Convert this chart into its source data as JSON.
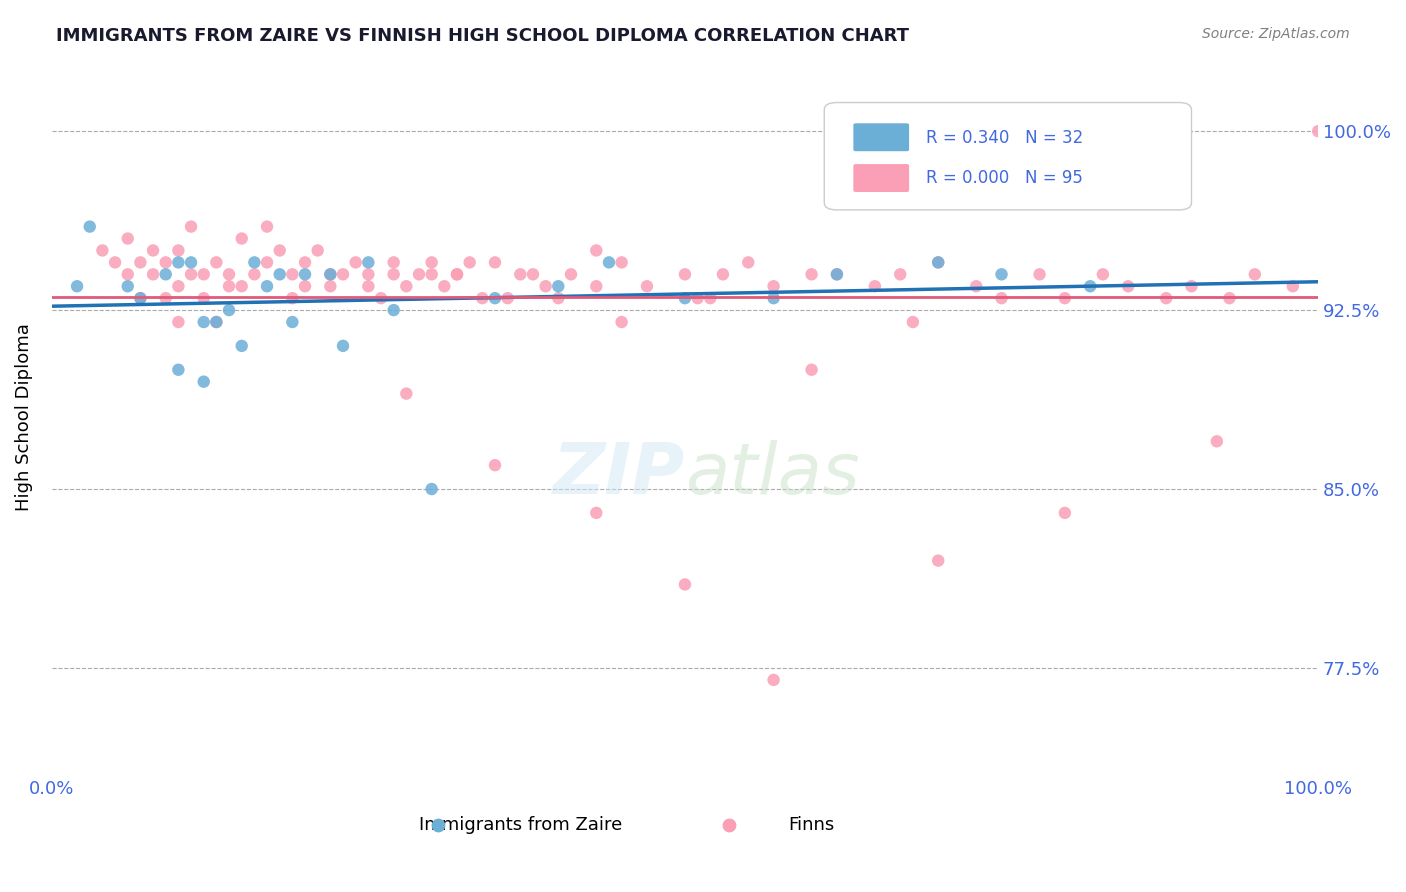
{
  "title": "IMMIGRANTS FROM ZAIRE VS FINNISH HIGH SCHOOL DIPLOMA CORRELATION CHART",
  "source": "Source: ZipAtlas.com",
  "xlabel_bottom": "",
  "ylabel": "High School Diploma",
  "x_tick_labels": [
    "0.0%",
    "100.0%"
  ],
  "y_tick_labels": [
    "77.5%",
    "85.0%",
    "92.5%",
    "100.0%"
  ],
  "y_tick_values": [
    0.775,
    0.85,
    0.925,
    1.0
  ],
  "x_lim": [
    0.0,
    1.0
  ],
  "y_lim": [
    0.73,
    1.03
  ],
  "legend_label1": "Immigrants from Zaire",
  "legend_label2": "Finns",
  "R1": "0.340",
  "N1": "32",
  "R2": "0.000",
  "N2": "95",
  "blue_color": "#6baed6",
  "pink_color": "#fa9fb5",
  "blue_line_color": "#2171b5",
  "pink_line_color": "#e05a7a",
  "title_color": "#1a1a2e",
  "axis_label_color": "#4169E1",
  "watermark": "ZIPatlas",
  "blue_dots_x": [
    0.02,
    0.03,
    0.06,
    0.07,
    0.09,
    0.1,
    0.1,
    0.11,
    0.12,
    0.12,
    0.13,
    0.14,
    0.15,
    0.16,
    0.17,
    0.18,
    0.19,
    0.2,
    0.22,
    0.23,
    0.25,
    0.27,
    0.3,
    0.35,
    0.4,
    0.44,
    0.5,
    0.57,
    0.62,
    0.7,
    0.75,
    0.82
  ],
  "blue_dots_y": [
    0.935,
    0.96,
    0.935,
    0.93,
    0.94,
    0.9,
    0.945,
    0.945,
    0.895,
    0.92,
    0.92,
    0.925,
    0.91,
    0.945,
    0.935,
    0.94,
    0.92,
    0.94,
    0.94,
    0.91,
    0.945,
    0.925,
    0.85,
    0.93,
    0.935,
    0.945,
    0.93,
    0.93,
    0.94,
    0.945,
    0.94,
    0.935
  ],
  "pink_dots_x": [
    0.04,
    0.05,
    0.06,
    0.06,
    0.07,
    0.07,
    0.08,
    0.08,
    0.09,
    0.09,
    0.1,
    0.1,
    0.1,
    0.11,
    0.11,
    0.12,
    0.12,
    0.13,
    0.13,
    0.14,
    0.14,
    0.15,
    0.15,
    0.16,
    0.17,
    0.18,
    0.19,
    0.19,
    0.2,
    0.2,
    0.21,
    0.22,
    0.23,
    0.24,
    0.25,
    0.26,
    0.27,
    0.28,
    0.29,
    0.3,
    0.31,
    0.32,
    0.33,
    0.34,
    0.35,
    0.36,
    0.38,
    0.39,
    0.4,
    0.41,
    0.43,
    0.45,
    0.47,
    0.5,
    0.51,
    0.53,
    0.55,
    0.57,
    0.6,
    0.62,
    0.65,
    0.67,
    0.7,
    0.73,
    0.75,
    0.78,
    0.8,
    0.83,
    0.85,
    0.88,
    0.9,
    0.93,
    0.95,
    0.98,
    1.0,
    0.28,
    0.35,
    0.43,
    0.5,
    0.57,
    0.7,
    0.8,
    0.92,
    0.45,
    0.6,
    0.68,
    0.43,
    0.52,
    0.37,
    0.22,
    0.3,
    0.25,
    0.32,
    0.27,
    0.17
  ],
  "pink_dots_y": [
    0.95,
    0.945,
    0.94,
    0.955,
    0.945,
    0.93,
    0.94,
    0.95,
    0.945,
    0.93,
    0.95,
    0.935,
    0.92,
    0.94,
    0.96,
    0.94,
    0.93,
    0.945,
    0.92,
    0.94,
    0.935,
    0.955,
    0.935,
    0.94,
    0.945,
    0.95,
    0.94,
    0.93,
    0.945,
    0.935,
    0.95,
    0.935,
    0.94,
    0.945,
    0.94,
    0.93,
    0.945,
    0.935,
    0.94,
    0.945,
    0.935,
    0.94,
    0.945,
    0.93,
    0.945,
    0.93,
    0.94,
    0.935,
    0.93,
    0.94,
    0.935,
    0.945,
    0.935,
    0.94,
    0.93,
    0.94,
    0.945,
    0.935,
    0.94,
    0.94,
    0.935,
    0.94,
    0.945,
    0.935,
    0.93,
    0.94,
    0.93,
    0.94,
    0.935,
    0.93,
    0.935,
    0.93,
    0.94,
    0.935,
    1.0,
    0.89,
    0.86,
    0.84,
    0.81,
    0.77,
    0.82,
    0.84,
    0.87,
    0.92,
    0.9,
    0.92,
    0.95,
    0.93,
    0.94,
    0.94,
    0.94,
    0.935,
    0.94,
    0.94,
    0.96
  ]
}
